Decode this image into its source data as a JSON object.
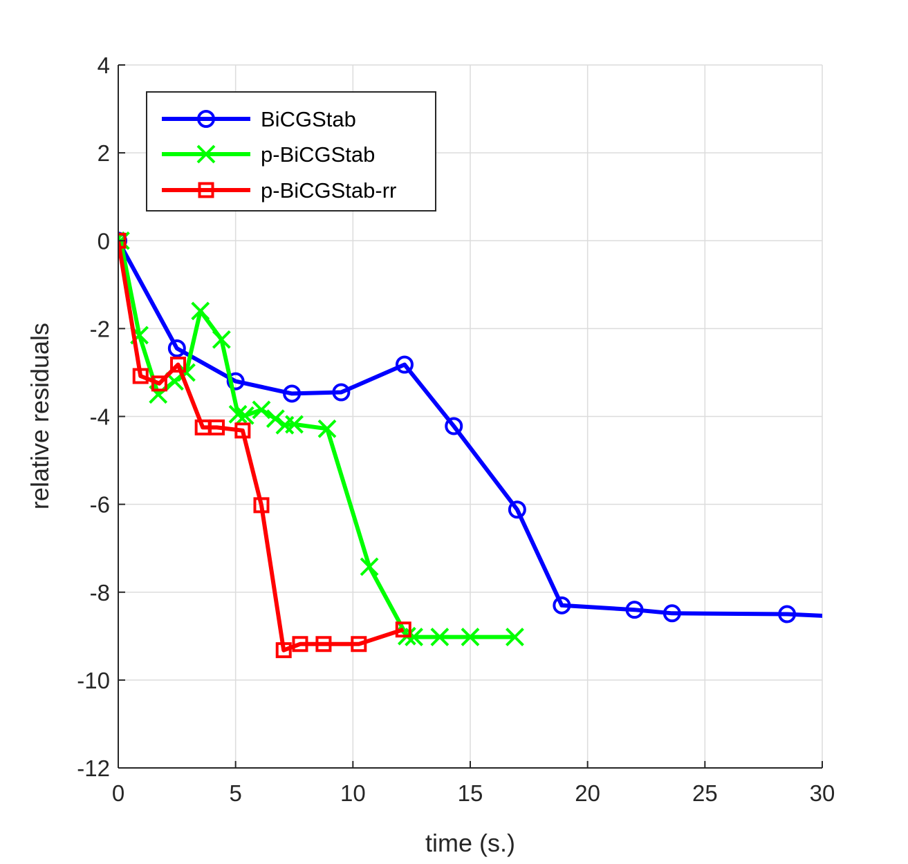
{
  "chart_data": {
    "type": "line",
    "xlabel": "time (s.)",
    "ylabel": "relative residuals",
    "xlim": [
      0,
      30
    ],
    "ylim": [
      -12,
      4
    ],
    "xticks": [
      0,
      5,
      10,
      15,
      20,
      25,
      30
    ],
    "yticks": [
      -12,
      -10,
      -8,
      -6,
      -4,
      -2,
      0,
      2,
      4
    ],
    "grid": true,
    "legend_position": "top-left",
    "series": [
      {
        "name": "BiCGStab",
        "color": "#0000ff",
        "marker": "circle",
        "x": [
          0,
          2.5,
          5.0,
          7.4,
          9.5,
          12.2,
          14.3,
          17.0,
          18.9,
          22.0,
          23.6,
          28.5,
          30.5
        ],
        "y": [
          0,
          -2.45,
          -3.2,
          -3.48,
          -3.45,
          -2.82,
          -4.22,
          -6.12,
          -8.3,
          -8.4,
          -8.48,
          -8.5,
          -8.55
        ]
      },
      {
        "name": "p-BiCGStab",
        "color": "#00ff00",
        "marker": "x",
        "x": [
          -0.1,
          0.1,
          0.9,
          1.7,
          2.4,
          2.9,
          3.5,
          4.4,
          5.1,
          5.4,
          6.1,
          6.7,
          7.1,
          7.5,
          8.9,
          10.7,
          12.3,
          12.6,
          13.7,
          15.0,
          16.9
        ],
        "y": [
          0,
          0,
          -2.15,
          -3.5,
          -3.2,
          -3.0,
          -1.6,
          -2.25,
          -3.95,
          -3.98,
          -3.85,
          -4.05,
          -4.2,
          -4.18,
          -4.28,
          -7.42,
          -9.0,
          -9.02,
          -9.02,
          -9.02,
          -9.02
        ]
      },
      {
        "name": "p-BiCGStab-rr",
        "color": "#ff0000",
        "marker": "square",
        "x": [
          0,
          0.95,
          1.75,
          2.55,
          3.6,
          4.2,
          5.3,
          6.1,
          7.05,
          7.75,
          8.75,
          10.25,
          12.15
        ],
        "y": [
          0,
          -3.08,
          -3.25,
          -2.82,
          -4.25,
          -4.25,
          -4.32,
          -6.02,
          -9.32,
          -9.18,
          -9.18,
          -9.18,
          -8.85
        ]
      }
    ]
  }
}
